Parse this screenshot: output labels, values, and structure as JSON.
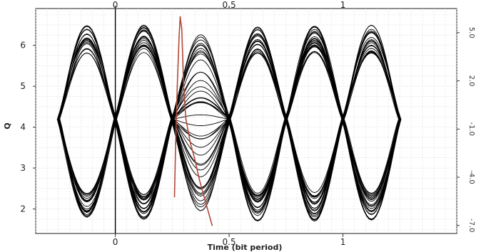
{
  "chart_data": {
    "type": "line",
    "title": "",
    "xlabel": "Time (bit period)",
    "ylabel": "Q",
    "y2label": "",
    "xlim": [
      -0.35,
      1.5
    ],
    "ylim": [
      1.4,
      6.9
    ],
    "y2lim": [
      -7.5,
      6.5
    ],
    "x_ticks_bottom": [
      {
        "value": 0,
        "label": "0"
      },
      {
        "value": 0.5,
        "label": "0.5"
      },
      {
        "value": 1,
        "label": "1"
      }
    ],
    "x_ticks_top": [
      {
        "value": 0,
        "label": "0"
      },
      {
        "value": 0.5,
        "label": "0.5"
      },
      {
        "value": 1,
        "label": "1"
      }
    ],
    "y_ticks_left": [
      {
        "value": 2,
        "label": "2"
      },
      {
        "value": 3,
        "label": "3"
      },
      {
        "value": 4,
        "label": "4"
      },
      {
        "value": 5,
        "label": "5"
      },
      {
        "value": 6,
        "label": "6"
      }
    ],
    "y_ticks_right": [
      {
        "value": 5,
        "label": "5.0"
      },
      {
        "value": 2,
        "label": "2.0"
      },
      {
        "value": -1,
        "label": "-1.0"
      },
      {
        "value": -4,
        "label": "-4.0"
      },
      {
        "value": -7,
        "label": "-7.0"
      }
    ],
    "grid": true,
    "eye_diagram": {
      "crossings": [
        -0.25,
        0,
        0.25,
        0.5,
        0.75,
        1,
        1.25
      ],
      "crossing_level": 4.2,
      "upper_eye": {
        "min": 5.8,
        "max": 6.5
      },
      "lower_eye": {
        "min": 1.7,
        "max": 2.4
      },
      "closed_interval": [
        0.25,
        0.5
      ],
      "trace_count": 22,
      "color": "#000000"
    },
    "overlay_series": {
      "color": "#b04a3a",
      "points": [
        [
          0.26,
          2.3
        ],
        [
          0.265,
          3.6
        ],
        [
          0.272,
          5.0
        ],
        [
          0.28,
          6.2
        ],
        [
          0.285,
          6.7
        ],
        [
          0.292,
          6.4
        ],
        [
          0.3,
          5.0
        ],
        [
          0.31,
          4.2
        ],
        [
          0.33,
          3.6
        ],
        [
          0.35,
          3.2
        ],
        [
          0.37,
          2.7
        ],
        [
          0.39,
          2.3
        ],
        [
          0.41,
          1.9
        ],
        [
          0.425,
          1.6
        ]
      ]
    }
  }
}
